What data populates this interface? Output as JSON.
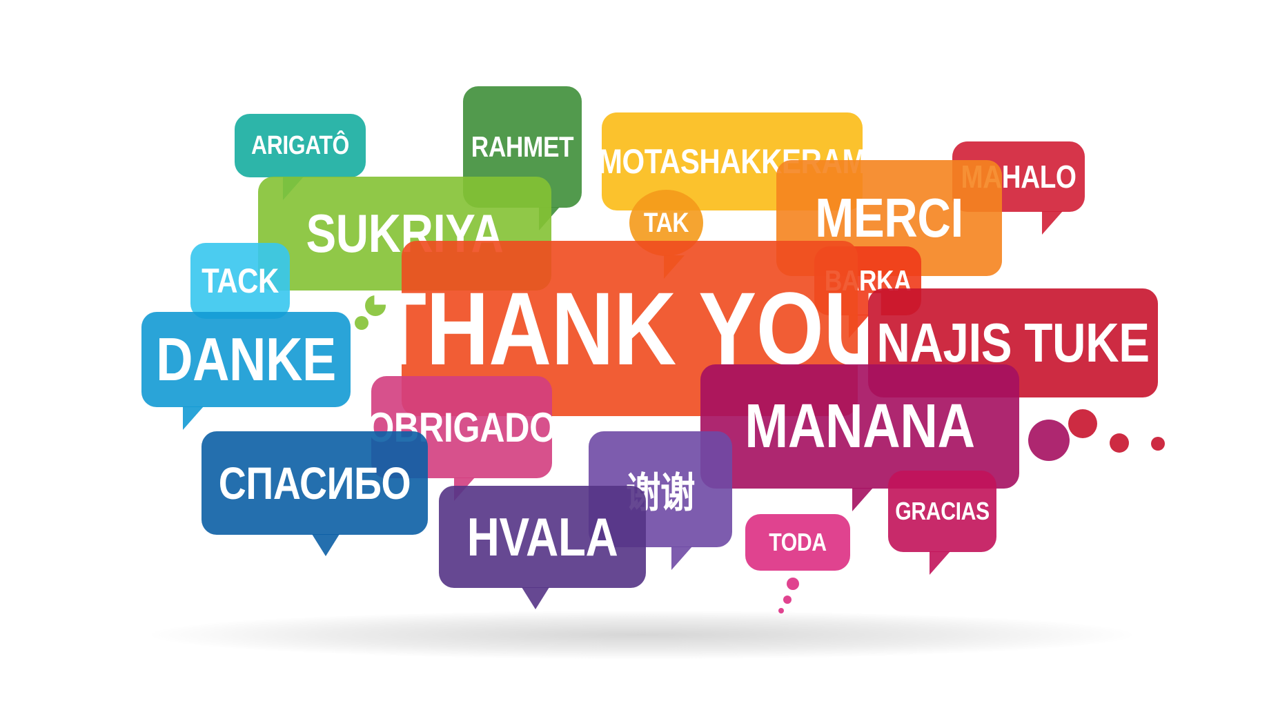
{
  "bubbles": [
    {
      "key": "arigato",
      "text": "ARIGATÔ",
      "color": "#16ada0"
    },
    {
      "key": "rahmet",
      "text": "RAHMET",
      "color": "#3f8f3a"
    },
    {
      "key": "motashakkeram",
      "text": "MOTASHAKKERAM",
      "color": "#fbbb16"
    },
    {
      "key": "mahalo",
      "text": "MAHALO",
      "color": "#d21f36"
    },
    {
      "key": "sukriya",
      "text": "SUKRIYA",
      "color": "#84c234"
    },
    {
      "key": "tak",
      "text": "TAK",
      "color": "#f49a1b"
    },
    {
      "key": "merci",
      "text": "MERCI",
      "color": "#f5841f"
    },
    {
      "key": "tack",
      "text": "TACK",
      "color": "#37c6ee"
    },
    {
      "key": "barka",
      "text": "BARKA",
      "color": "#ef3b19"
    },
    {
      "key": "thank-you",
      "text": "THANK YOU",
      "color": "#ef4b1f"
    },
    {
      "key": "danke",
      "text": "DANKE",
      "color": "#139ad4"
    },
    {
      "key": "najis-tuke",
      "text": "NAJIS TUKE",
      "color": "#c8142e"
    },
    {
      "key": "obrigado",
      "text": "OBRIGADO",
      "color": "#d33e80"
    },
    {
      "key": "manana",
      "text": "MANANA",
      "color": "#a51060"
    },
    {
      "key": "spasibo",
      "text": "СПАСИБО",
      "color": "#0c5fa5"
    },
    {
      "key": "xiexie",
      "text": "谢谢",
      "color": "#6f4aa5"
    },
    {
      "key": "hvala",
      "text": "HVALA",
      "color": "#553486"
    },
    {
      "key": "toda",
      "text": "TODA",
      "color": "#dd2f83"
    },
    {
      "key": "gracias",
      "text": "GRACIAS",
      "color": "#c2135a"
    }
  ]
}
